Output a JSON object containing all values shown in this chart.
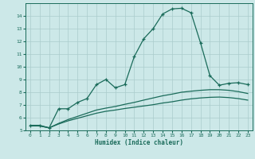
{
  "bg_color": "#cce8e8",
  "grid_color": "#aacccc",
  "line_color": "#1a6b5a",
  "xlabel": "Humidex (Indice chaleur)",
  "xlim": [
    -0.5,
    23.5
  ],
  "ylim": [
    5,
    15
  ],
  "yticks": [
    5,
    6,
    7,
    8,
    9,
    10,
    11,
    12,
    13,
    14
  ],
  "xticks": [
    0,
    1,
    2,
    3,
    4,
    5,
    6,
    7,
    8,
    9,
    10,
    11,
    12,
    13,
    14,
    15,
    16,
    17,
    18,
    19,
    20,
    21,
    22,
    23
  ],
  "line1_x": [
    0,
    1,
    2,
    3,
    4,
    5,
    6,
    7,
    8,
    9,
    10,
    11,
    12,
    13,
    14,
    15,
    16,
    17,
    18,
    19,
    20,
    21,
    22,
    23
  ],
  "line1_y": [
    5.4,
    5.4,
    5.2,
    6.7,
    6.7,
    7.2,
    7.5,
    8.6,
    9.0,
    8.35,
    8.6,
    10.8,
    12.2,
    13.0,
    14.15,
    14.55,
    14.6,
    14.25,
    11.9,
    9.3,
    8.55,
    8.7,
    8.75,
    8.6
  ],
  "line2_x": [
    0,
    1,
    2,
    3,
    4,
    5,
    6,
    7,
    8,
    9,
    10,
    11,
    12,
    13,
    14,
    15,
    16,
    17,
    18,
    19,
    20,
    21,
    22,
    23
  ],
  "line2_y": [
    5.35,
    5.35,
    5.2,
    5.5,
    5.75,
    5.95,
    6.15,
    6.35,
    6.5,
    6.6,
    6.72,
    6.82,
    6.92,
    7.02,
    7.15,
    7.25,
    7.38,
    7.48,
    7.55,
    7.6,
    7.62,
    7.58,
    7.5,
    7.38
  ],
  "line3_x": [
    0,
    1,
    2,
    3,
    4,
    5,
    6,
    7,
    8,
    9,
    10,
    11,
    12,
    13,
    14,
    15,
    16,
    17,
    18,
    19,
    20,
    21,
    22,
    23
  ],
  "line3_y": [
    5.35,
    5.35,
    5.2,
    5.55,
    5.85,
    6.1,
    6.35,
    6.6,
    6.75,
    6.88,
    7.05,
    7.2,
    7.38,
    7.55,
    7.72,
    7.85,
    8.0,
    8.08,
    8.15,
    8.2,
    8.2,
    8.15,
    8.05,
    7.9
  ]
}
